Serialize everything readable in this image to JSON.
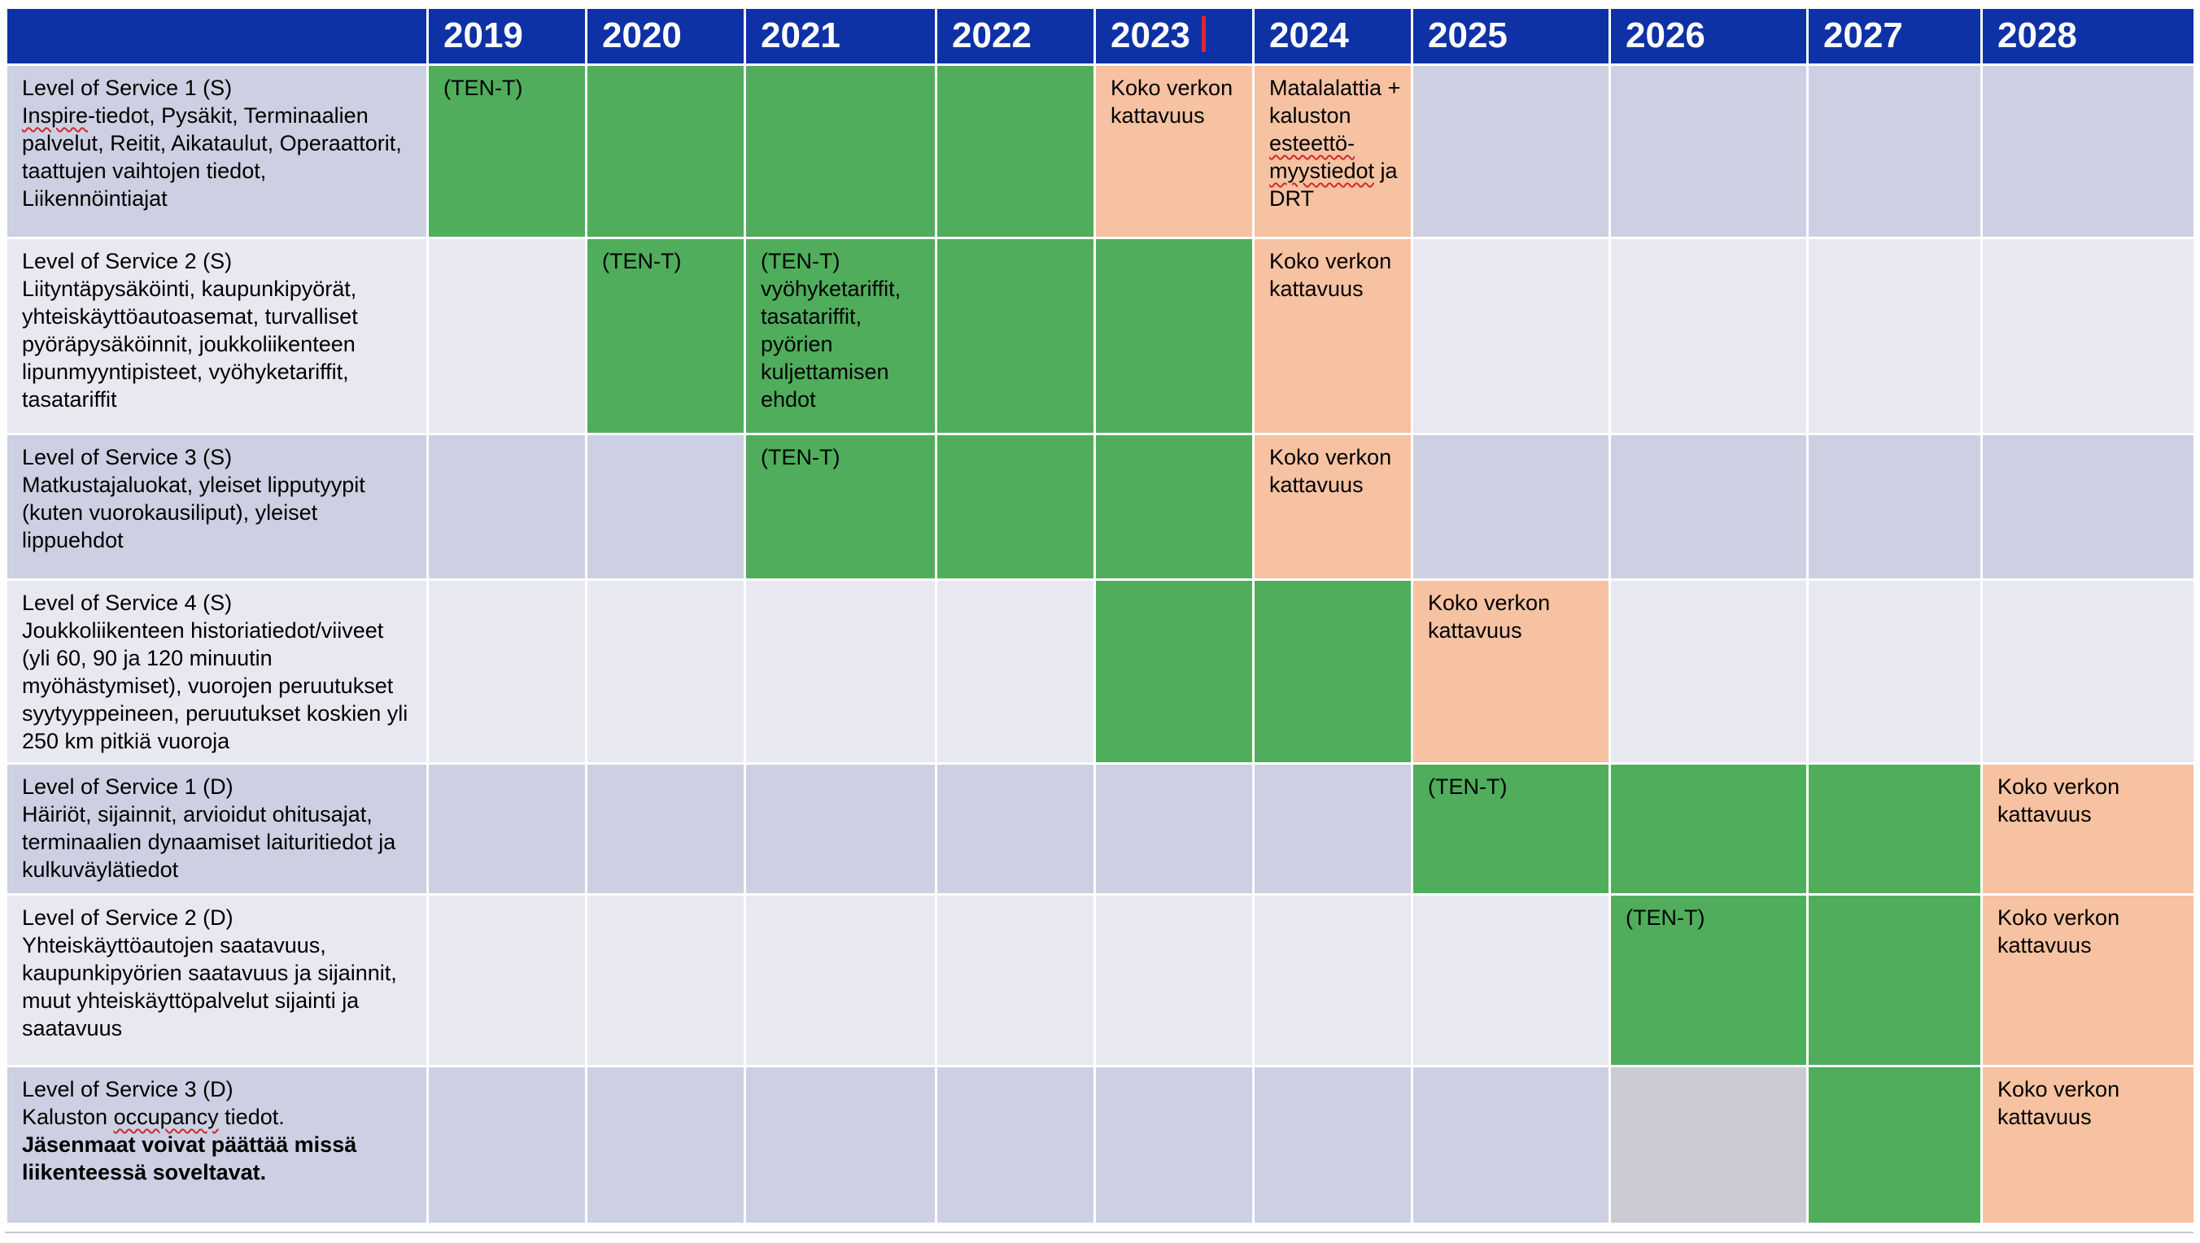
{
  "header": {
    "years": [
      "2019",
      "2020",
      "2021",
      "2022",
      "2023",
      "2024",
      "2025",
      "2026",
      "2027",
      "2028"
    ]
  },
  "rows": [
    {
      "title": "Level of Service 1 (S)",
      "description": "Inspire-tiedot, Pysäkit, Terminaalien palvelut,  Reitit, Aikataulut, Operaattorit, taattujen vaihtojen tiedot, Liikennöintiajat",
      "cells": [
        {
          "status": "green",
          "text": "(TEN-T)"
        },
        {
          "status": "green",
          "text": ""
        },
        {
          "status": "green",
          "text": ""
        },
        {
          "status": "green",
          "text": ""
        },
        {
          "status": "orange",
          "text": "Koko verkon kattavuus"
        },
        {
          "status": "orange",
          "text": "Matalalattia + kaluston esteettö-myystiedot ja DRT"
        },
        {
          "status": "none",
          "text": ""
        },
        {
          "status": "none",
          "text": ""
        },
        {
          "status": "none",
          "text": ""
        },
        {
          "status": "none",
          "text": ""
        }
      ]
    },
    {
      "title": "Level of Service 2 (S)",
      "description": "Liityntäpysäköinti, kaupunkipyörät, yhteiskäyttöautoasemat, turvalliset pyöräpysäköinnit, joukkoliikenteen lipunmyyntipisteet, vyöhyketariffit, tasatariffit",
      "cells": [
        {
          "status": "none",
          "text": ""
        },
        {
          "status": "green",
          "text": "(TEN-T)"
        },
        {
          "status": "green",
          "text": "(TEN-T) vyöhyketariffit, tasatariffit, pyörien kuljettamisen ehdot"
        },
        {
          "status": "green",
          "text": ""
        },
        {
          "status": "green",
          "text": ""
        },
        {
          "status": "orange",
          "text": "Koko verkon kattavuus"
        },
        {
          "status": "none",
          "text": ""
        },
        {
          "status": "none",
          "text": ""
        },
        {
          "status": "none",
          "text": ""
        },
        {
          "status": "none",
          "text": ""
        }
      ]
    },
    {
      "title": "Level of Service 3 (S)",
      "description": "Matkustajaluokat, yleiset lipputyypit (kuten vuorokausiliput), yleiset lippuehdot",
      "cells": [
        {
          "status": "none",
          "text": ""
        },
        {
          "status": "none",
          "text": ""
        },
        {
          "status": "green",
          "text": "(TEN-T)"
        },
        {
          "status": "green",
          "text": ""
        },
        {
          "status": "green",
          "text": ""
        },
        {
          "status": "orange",
          "text": "Koko verkon kattavuus"
        },
        {
          "status": "none",
          "text": ""
        },
        {
          "status": "none",
          "text": ""
        },
        {
          "status": "none",
          "text": ""
        },
        {
          "status": "none",
          "text": ""
        }
      ]
    },
    {
      "title": "Level of Service 4 (S)",
      "description": "Joukkoliikenteen historiatiedot/viiveet (yli 60, 90 ja 120 minuutin myöhästymiset), vuorojen peruutukset syytyyppeineen, peruutukset koskien yli 250 km pitkiä vuoroja",
      "cells": [
        {
          "status": "none",
          "text": ""
        },
        {
          "status": "none",
          "text": ""
        },
        {
          "status": "none",
          "text": ""
        },
        {
          "status": "none",
          "text": ""
        },
        {
          "status": "green",
          "text": ""
        },
        {
          "status": "green",
          "text": ""
        },
        {
          "status": "orange",
          "text": "Koko verkon kattavuus"
        },
        {
          "status": "none",
          "text": ""
        },
        {
          "status": "none",
          "text": ""
        },
        {
          "status": "none",
          "text": ""
        }
      ]
    },
    {
      "title": "Level of Service 1 (D)",
      "description": "Häiriöt, sijainnit, arvioidut ohitusajat, terminaalien dynaamiset laituritiedot ja kulkuväylätiedot",
      "cells": [
        {
          "status": "none",
          "text": ""
        },
        {
          "status": "none",
          "text": ""
        },
        {
          "status": "none",
          "text": ""
        },
        {
          "status": "none",
          "text": ""
        },
        {
          "status": "none",
          "text": ""
        },
        {
          "status": "none",
          "text": ""
        },
        {
          "status": "green",
          "text": "(TEN-T)"
        },
        {
          "status": "green",
          "text": ""
        },
        {
          "status": "green",
          "text": ""
        },
        {
          "status": "orange",
          "text": "Koko verkon kattavuus"
        }
      ]
    },
    {
      "title": "Level of Service 2 (D)",
      "description": "Yhteiskäyttöautojen saatavuus, kaupunkipyörien saatavuus ja sijainnit, muut yhteiskäyttöpalvelut sijainti ja saatavuus",
      "cells": [
        {
          "status": "none",
          "text": ""
        },
        {
          "status": "none",
          "text": ""
        },
        {
          "status": "none",
          "text": ""
        },
        {
          "status": "none",
          "text": ""
        },
        {
          "status": "none",
          "text": ""
        },
        {
          "status": "none",
          "text": ""
        },
        {
          "status": "none",
          "text": ""
        },
        {
          "status": "green",
          "text": "(TEN-T)"
        },
        {
          "status": "green",
          "text": ""
        },
        {
          "status": "orange",
          "text": "Koko verkon kattavuus"
        }
      ]
    },
    {
      "title": "Level of Service 3 (D)",
      "description": "Kaluston occupancy tiedot.",
      "note": "Jäsenmaat voivat päättää missä liikenteessä soveltavat.",
      "cells": [
        {
          "status": "none",
          "text": ""
        },
        {
          "status": "none",
          "text": ""
        },
        {
          "status": "none",
          "text": ""
        },
        {
          "status": "none",
          "text": ""
        },
        {
          "status": "none",
          "text": ""
        },
        {
          "status": "none",
          "text": ""
        },
        {
          "status": "none",
          "text": ""
        },
        {
          "status": "grey",
          "text": ""
        },
        {
          "status": "green",
          "text": ""
        },
        {
          "status": "orange",
          "text": "Koko verkon kattavuus"
        }
      ]
    }
  ],
  "colors": {
    "header": "#0e31a6",
    "green": "#4fad5b",
    "orange": "#f6c2a1",
    "grey": "#cbcbd3",
    "row_odd": "#cdd0e2",
    "row_even": "#e7e8f0",
    "marker": "#e0262c"
  },
  "icons": {
    "year_2023_marker": "red-vertical-bar"
  }
}
